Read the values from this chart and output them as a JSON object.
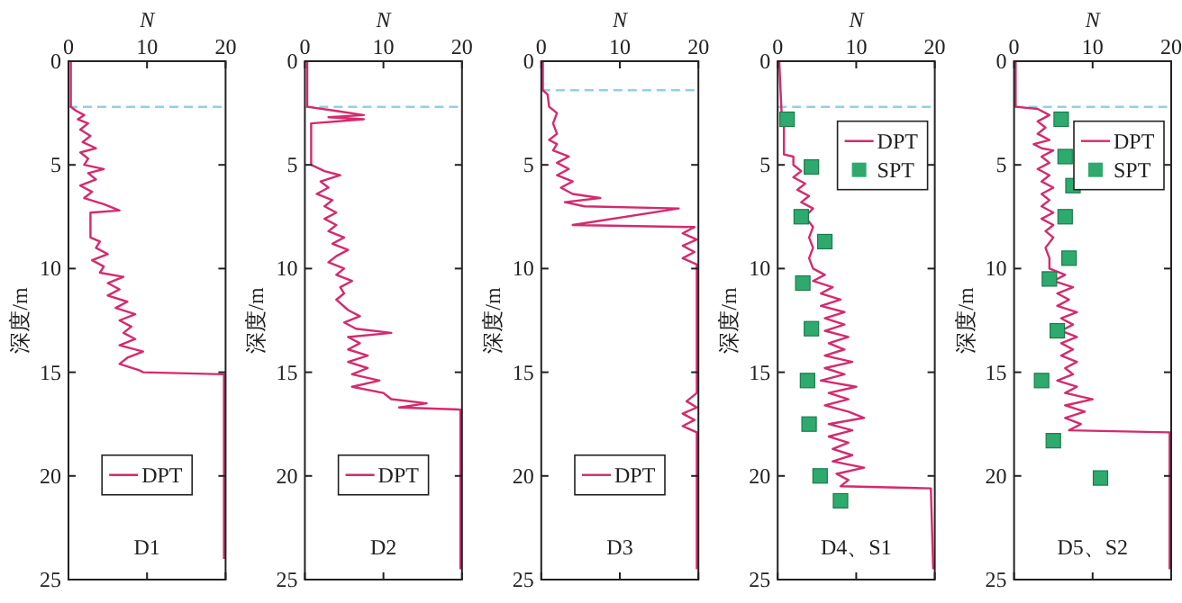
{
  "chart_data": [
    {
      "type": "line",
      "xlabel": "N",
      "ylabel": "深度/m",
      "xlim": [
        0,
        20
      ],
      "ylim": [
        25,
        0
      ],
      "xticks": [
        0,
        10,
        20
      ],
      "yticks": [
        0,
        5,
        10,
        15,
        20,
        25
      ],
      "legend": "bottom",
      "annotations": [
        "D1"
      ],
      "ref_lines": [
        {
          "axis": "y",
          "value": 2.2,
          "color": "#8fd3de",
          "line_style": "dashed"
        }
      ],
      "series": [
        {
          "name": "DPT",
          "type": "line",
          "color": "#d42a6e",
          "line_style": "solid",
          "x": [
            0.3,
            0.3,
            1,
            2,
            1.2,
            2.5,
            1.5,
            2.8,
            1.8,
            3.5,
            1.5,
            2.5,
            2,
            4.5,
            2.5,
            3.5,
            1.5,
            3,
            2,
            4.5,
            6.5,
            2.8,
            2.8,
            4,
            3.5,
            5,
            3,
            4.5,
            4,
            7,
            5,
            6.5,
            5,
            7.5,
            6,
            8.5,
            6.5,
            8,
            7,
            8.5,
            6.5,
            9.5,
            7.5,
            6.5,
            9,
            9.5,
            19.8,
            19.8
          ],
          "values": [
            0,
            2.2,
            2.4,
            2.6,
            2.8,
            3,
            3.3,
            3.6,
            3.9,
            4.2,
            4.4,
            4.7,
            5,
            5.2,
            5.4,
            5.7,
            6,
            6.3,
            6.6,
            6.9,
            7.2,
            7.3,
            8.5,
            8.7,
            9,
            9.3,
            9.6,
            9.9,
            10.2,
            10.4,
            10.7,
            11,
            11.3,
            11.6,
            11.9,
            12.2,
            12.5,
            12.8,
            13.1,
            13.4,
            13.7,
            14,
            14.3,
            14.6,
            14.9,
            15,
            15.1,
            24
          ]
        }
      ]
    },
    {
      "type": "line",
      "xlabel": "N",
      "ylabel": "深度/m",
      "xlim": [
        0,
        20
      ],
      "ylim": [
        25,
        0
      ],
      "xticks": [
        0,
        10,
        20
      ],
      "yticks": [
        0,
        5,
        10,
        15,
        20,
        25
      ],
      "legend": "bottom",
      "annotations": [
        "D2"
      ],
      "ref_lines": [
        {
          "axis": "y",
          "value": 2.2,
          "color": "#8fd3de",
          "line_style": "dashed"
        }
      ],
      "series": [
        {
          "name": "DPT",
          "type": "line",
          "color": "#d42a6e",
          "line_style": "solid",
          "x": [
            0.3,
            0.3,
            4,
            7.5,
            3,
            7.5,
            0.8,
            0.8,
            2.5,
            4.5,
            2,
            3,
            1.5,
            3.5,
            2.5,
            4,
            2.5,
            4,
            3,
            5,
            3.5,
            5.5,
            4,
            3,
            5,
            4,
            6,
            4.5,
            5,
            4,
            5.5,
            7,
            5,
            6.5,
            11,
            5.5,
            7,
            5.5,
            8,
            5.5,
            8,
            6,
            9.5,
            6,
            10,
            11,
            15.5,
            12,
            19.8,
            19.8
          ],
          "values": [
            0,
            2.2,
            2.4,
            2.6,
            2.7,
            2.8,
            3,
            5,
            5.3,
            5.5,
            5.8,
            6.1,
            6.4,
            6.7,
            7,
            7.3,
            7.6,
            7.9,
            8.2,
            8.5,
            8.8,
            9.1,
            9.4,
            9.7,
            10,
            10.3,
            10.6,
            10.9,
            11.2,
            11.5,
            12,
            12.3,
            12.6,
            12.9,
            13.1,
            13.3,
            13.6,
            13.9,
            14.2,
            14.5,
            14.8,
            15.1,
            15.4,
            15.7,
            16,
            16.3,
            16.5,
            16.7,
            16.8,
            24.5
          ]
        }
      ]
    },
    {
      "type": "line",
      "xlabel": "N",
      "ylabel": "深度/m",
      "xlim": [
        0,
        20
      ],
      "ylim": [
        25,
        0
      ],
      "xticks": [
        0,
        10,
        20
      ],
      "yticks": [
        0,
        5,
        10,
        15,
        20,
        25
      ],
      "legend": "bottom",
      "annotations": [
        "D3"
      ],
      "ref_lines": [
        {
          "axis": "y",
          "value": 1.4,
          "color": "#8fd3de",
          "line_style": "dashed"
        }
      ],
      "series": [
        {
          "name": "DPT",
          "type": "line",
          "color": "#d42a6e",
          "line_style": "solid",
          "x": [
            0.2,
            0.2,
            0.8,
            1,
            2,
            1.5,
            2,
            1,
            2,
            1.5,
            3.5,
            2,
            3.5,
            2,
            4,
            2.5,
            4,
            7.5,
            3,
            5.5,
            17.5,
            4,
            19.5,
            18,
            19.8,
            18,
            19.5,
            18,
            19.8,
            19.8,
            19.8,
            19.8,
            18.5,
            19.8,
            18,
            19.5,
            18,
            19.8,
            19.8
          ],
          "values": [
            0,
            1.4,
            1.6,
            2.2,
            2.5,
            3,
            3.5,
            3.8,
            4,
            4.3,
            4.6,
            4.9,
            5.2,
            5.5,
            5.8,
            6.1,
            6.4,
            6.6,
            6.8,
            7,
            7.1,
            7.9,
            8,
            8.3,
            8.6,
            8.9,
            9.2,
            9.5,
            9.8,
            10,
            10.3,
            16,
            16.4,
            16.7,
            17,
            17.3,
            17.6,
            17.9,
            24.5
          ]
        }
      ]
    },
    {
      "type": "line",
      "xlabel": "N",
      "ylabel": "深度/m",
      "xlim": [
        0,
        20
      ],
      "ylim": [
        25,
        0
      ],
      "xticks": [
        0,
        10,
        20
      ],
      "yticks": [
        0,
        5,
        10,
        15,
        20,
        25
      ],
      "legend": "top right",
      "annotations": [
        "D4、S1"
      ],
      "ref_lines": [
        {
          "axis": "y",
          "value": 2.2,
          "color": "#8fd3de",
          "line_style": "dashed"
        }
      ],
      "series": [
        {
          "name": "DPT",
          "type": "line",
          "color": "#d42a6e",
          "line_style": "solid",
          "x": [
            0.2,
            0.5,
            0.8,
            0.8,
            2,
            2,
            3,
            2,
            3.5,
            2.5,
            4,
            3,
            4.5,
            3.5,
            4.5,
            4,
            4.5,
            4,
            4.5,
            6,
            4.5,
            7,
            5.5,
            8,
            5.5,
            8.5,
            6,
            8.5,
            6,
            9,
            6.5,
            8.5,
            6,
            9.5,
            6,
            8.5,
            5.5,
            10,
            6.5,
            9,
            6,
            9,
            11,
            6.5,
            9.5,
            6.5,
            9,
            7,
            9.5,
            7,
            11,
            7.5,
            9,
            8,
            19.5,
            19.8
          ],
          "values": [
            0,
            2.5,
            2.8,
            4.5,
            4.6,
            5,
            5.3,
            5.6,
            5.9,
            6.2,
            6.5,
            6.8,
            7.1,
            7.5,
            8,
            8.5,
            9,
            9.5,
            10,
            10.3,
            10.6,
            10.9,
            11.2,
            11.5,
            11.8,
            12.1,
            12.4,
            12.7,
            13,
            13.3,
            13.6,
            13.9,
            14.2,
            14.5,
            14.8,
            15.1,
            15.4,
            15.7,
            16,
            16.3,
            16.6,
            16.9,
            17.2,
            17.5,
            17.8,
            18.1,
            18.4,
            18.7,
            19,
            19.3,
            19.6,
            19.9,
            20.2,
            20.5,
            20.6,
            24.5
          ]
        },
        {
          "name": "SPT",
          "type": "scatter",
          "color": "#2eaa6e",
          "marker": "square",
          "x": [
            1.2,
            4.3,
            3,
            6,
            3.2,
            4.3,
            3.8,
            4,
            5.4,
            8
          ],
          "values": [
            2.8,
            5.1,
            7.5,
            8.7,
            10.7,
            12.9,
            15.4,
            17.5,
            20,
            21.2
          ]
        }
      ]
    },
    {
      "type": "line",
      "xlabel": "N",
      "ylabel": "深度/m",
      "xlim": [
        0,
        20
      ],
      "ylim": [
        25,
        0
      ],
      "xticks": [
        0,
        10,
        20
      ],
      "yticks": [
        0,
        5,
        10,
        15,
        20,
        25
      ],
      "legend": "top right",
      "annotations": [
        "D5、S2"
      ],
      "ref_lines": [
        {
          "axis": "y",
          "value": 2.2,
          "color": "#8fd3de",
          "line_style": "dashed"
        }
      ],
      "series": [
        {
          "name": "DPT",
          "type": "line",
          "color": "#d42a6e",
          "line_style": "solid",
          "x": [
            0.2,
            0.2,
            3,
            4.5,
            3,
            4,
            3,
            4.5,
            2.5,
            3.5,
            5,
            3.5,
            4.5,
            3,
            4.5,
            3.5,
            5,
            3.5,
            4.5,
            3.5,
            5,
            3.5,
            5,
            4,
            5,
            4,
            4.5,
            4.5,
            6.5,
            5,
            7.5,
            5.5,
            7,
            5.5,
            8,
            6,
            7.5,
            6,
            8,
            6,
            7.5,
            6,
            8,
            6.5,
            7.5,
            5.5,
            8,
            6.5,
            10,
            6.5,
            9,
            6.5,
            8.5,
            7,
            19.8,
            19.8
          ],
          "values": [
            0,
            2.2,
            2.3,
            2.6,
            2.9,
            3.2,
            3.5,
            3.8,
            4,
            4.2,
            4.3,
            4.6,
            4.9,
            5.2,
            5.5,
            5.8,
            6.1,
            6.4,
            6.7,
            7,
            7.3,
            7.6,
            7.9,
            8.2,
            8.5,
            9,
            9.5,
            10,
            10.3,
            10.6,
            10.9,
            11.2,
            11.5,
            11.8,
            12.1,
            12.4,
            12.7,
            13,
            13.3,
            13.6,
            13.9,
            14.2,
            14.5,
            14.8,
            15.1,
            15.4,
            15.7,
            16,
            16.3,
            16.6,
            16.9,
            17.2,
            17.5,
            17.8,
            17.9,
            24.5
          ]
        },
        {
          "name": "SPT",
          "type": "scatter",
          "color": "#2eaa6e",
          "marker": "square",
          "x": [
            6,
            6.5,
            7.5,
            6.5,
            7,
            4.5,
            5.5,
            3.5,
            5,
            11
          ],
          "values": [
            2.8,
            4.6,
            6,
            7.5,
            9.5,
            10.5,
            13,
            15.4,
            18.3,
            20.1
          ]
        }
      ]
    }
  ]
}
